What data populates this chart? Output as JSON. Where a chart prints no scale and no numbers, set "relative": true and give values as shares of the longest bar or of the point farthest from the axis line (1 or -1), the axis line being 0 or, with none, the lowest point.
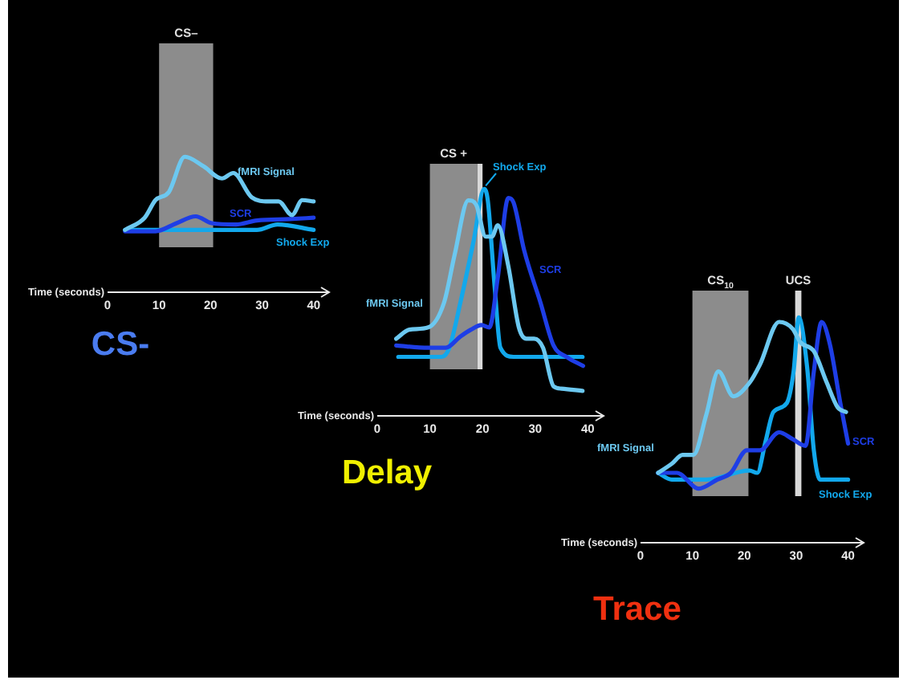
{
  "chart_data": [
    {
      "type": "line",
      "title": "CS-",
      "xlabel": "Time (seconds)",
      "relative": true,
      "tick_labels": "x",
      "marker": "none",
      "xlim": [
        0,
        43
      ],
      "xticks": [
        0,
        10,
        20,
        30,
        40
      ],
      "bands": [
        {
          "axis": "x",
          "from": 10,
          "to": 20.5,
          "label": "CS–",
          "color": "#8c8c8c"
        }
      ],
      "series": [
        {
          "name": "fMRI Signal",
          "color": "#6cc8f0",
          "x": [
            3.4,
            7.2,
            9.3,
            11.9,
            15,
            18.6,
            22.2,
            24.4,
            28,
            31.2,
            33.2,
            35.8,
            37.8,
            40
          ],
          "values": [
            0.46,
            0.55,
            0.68,
            0.74,
            1.0,
            0.93,
            0.84,
            0.88,
            0.7,
            0.67,
            0.67,
            0.57,
            0.68,
            0.67
          ]
        },
        {
          "name": "SCR",
          "color": "#1e3ee6",
          "x": [
            3.4,
            9.3,
            13.4,
            17.1,
            20.2,
            24.9,
            29,
            35.3,
            40
          ],
          "values": [
            0.45,
            0.45,
            0.51,
            0.56,
            0.51,
            0.5,
            0.53,
            0.54,
            0.55
          ]
        },
        {
          "name": "Shock Exp",
          "color": "#12a8ec",
          "x": [
            3.4,
            20,
            29,
            33,
            40
          ],
          "values": [
            0.46,
            0.46,
            0.46,
            0.5,
            0.46
          ]
        }
      ]
    },
    {
      "type": "line",
      "title": "Delay",
      "xlabel": "Time (seconds)",
      "relative": true,
      "tick_labels": "x",
      "marker": "none",
      "xlim": [
        0,
        43
      ],
      "xticks": [
        0,
        10,
        20,
        30,
        40
      ],
      "bands": [
        {
          "axis": "x",
          "from": 10,
          "to": 19,
          "label": "CS +",
          "color": "#8c8c8c"
        },
        {
          "axis": "x",
          "from": 19,
          "to": 20,
          "color": "#d8d8d8"
        }
      ],
      "series": [
        {
          "name": "fMRI Signal",
          "color": "#6cc8f0",
          "x": [
            3.6,
            6.1,
            9.7,
            12.7,
            14.7,
            17.3,
            18.8,
            20.6,
            21.8,
            22.9,
            24.9,
            26.9,
            28.3,
            29.8,
            31.5,
            33.5,
            35,
            39
          ],
          "values": [
            0.34,
            0.38,
            0.39,
            0.5,
            0.71,
            0.95,
            0.93,
            0.79,
            0.79,
            0.84,
            0.66,
            0.39,
            0.34,
            0.34,
            0.3,
            0.13,
            0.12,
            0.11
          ]
        },
        {
          "name": "SCR",
          "color": "#1e3ee6",
          "x": [
            3.6,
            9.7,
            13,
            15.8,
            17.8,
            19.8,
            21.3,
            22.9,
            24.9,
            25.9,
            27.9,
            31,
            33.5,
            36,
            39.1
          ],
          "values": [
            0.31,
            0.3,
            0.3,
            0.35,
            0.38,
            0.4,
            0.39,
            0.61,
            0.96,
            0.94,
            0.73,
            0.5,
            0.31,
            0.26,
            0.22
          ]
        },
        {
          "name": "Shock Exp",
          "color": "#12a8ec",
          "x": [
            4,
            12.2,
            13.7,
            15.8,
            18.3,
            20.3,
            21,
            22.3,
            23.4,
            25.9,
            39
          ],
          "values": [
            0.26,
            0.26,
            0.3,
            0.5,
            0.77,
            1.0,
            0.95,
            0.57,
            0.3,
            0.26,
            0.26
          ]
        }
      ]
    },
    {
      "type": "line",
      "title": "Trace",
      "xlabel": "Time (seconds)",
      "relative": true,
      "tick_labels": "x",
      "marker": "none",
      "xlim": [
        0,
        43
      ],
      "xticks": [
        0,
        10,
        20,
        30,
        40
      ],
      "bands": [
        {
          "axis": "x",
          "from": 10,
          "to": 20.8,
          "label": "CS$_{10}$",
          "color": "#8c8c8c"
        },
        {
          "axis": "x",
          "from": 29.8,
          "to": 31,
          "label": "UCS",
          "color": "#d8d8d8"
        }
      ],
      "series": [
        {
          "name": "fMRI Signal",
          "color": "#6cc8f0",
          "x": [
            3.4,
            6,
            8.1,
            10.2,
            12.7,
            15,
            17.9,
            21,
            23,
            26.7,
            29.3,
            30.8,
            33.4,
            35.9,
            38,
            39.6
          ],
          "values": [
            0.31,
            0.35,
            0.39,
            0.39,
            0.57,
            0.76,
            0.65,
            0.71,
            0.79,
            0.98,
            0.95,
            0.89,
            0.85,
            0.71,
            0.6,
            0.58
          ]
        },
        {
          "name": "SCR",
          "color": "#1e3ee6",
          "x": [
            3.4,
            7,
            11.2,
            14.8,
            17.4,
            20.5,
            23,
            26.7,
            29.3,
            31.8,
            33.4,
            34.9,
            36.5,
            38.5,
            40
          ],
          "values": [
            0.31,
            0.31,
            0.24,
            0.28,
            0.31,
            0.41,
            0.41,
            0.49,
            0.46,
            0.43,
            0.76,
            0.98,
            0.88,
            0.62,
            0.44
          ]
        },
        {
          "name": "Shock Exp",
          "color": "#12a8ec",
          "x": [
            3.4,
            6,
            12.7,
            21,
            22.5,
            24.1,
            25.6,
            28.2,
            29.5,
            30.5,
            32.1,
            33.4,
            34.6,
            40
          ],
          "values": [
            0.31,
            0.28,
            0.28,
            0.32,
            0.31,
            0.45,
            0.58,
            0.62,
            0.76,
            1.0,
            0.78,
            0.41,
            0.28,
            0.28
          ]
        }
      ]
    }
  ]
}
